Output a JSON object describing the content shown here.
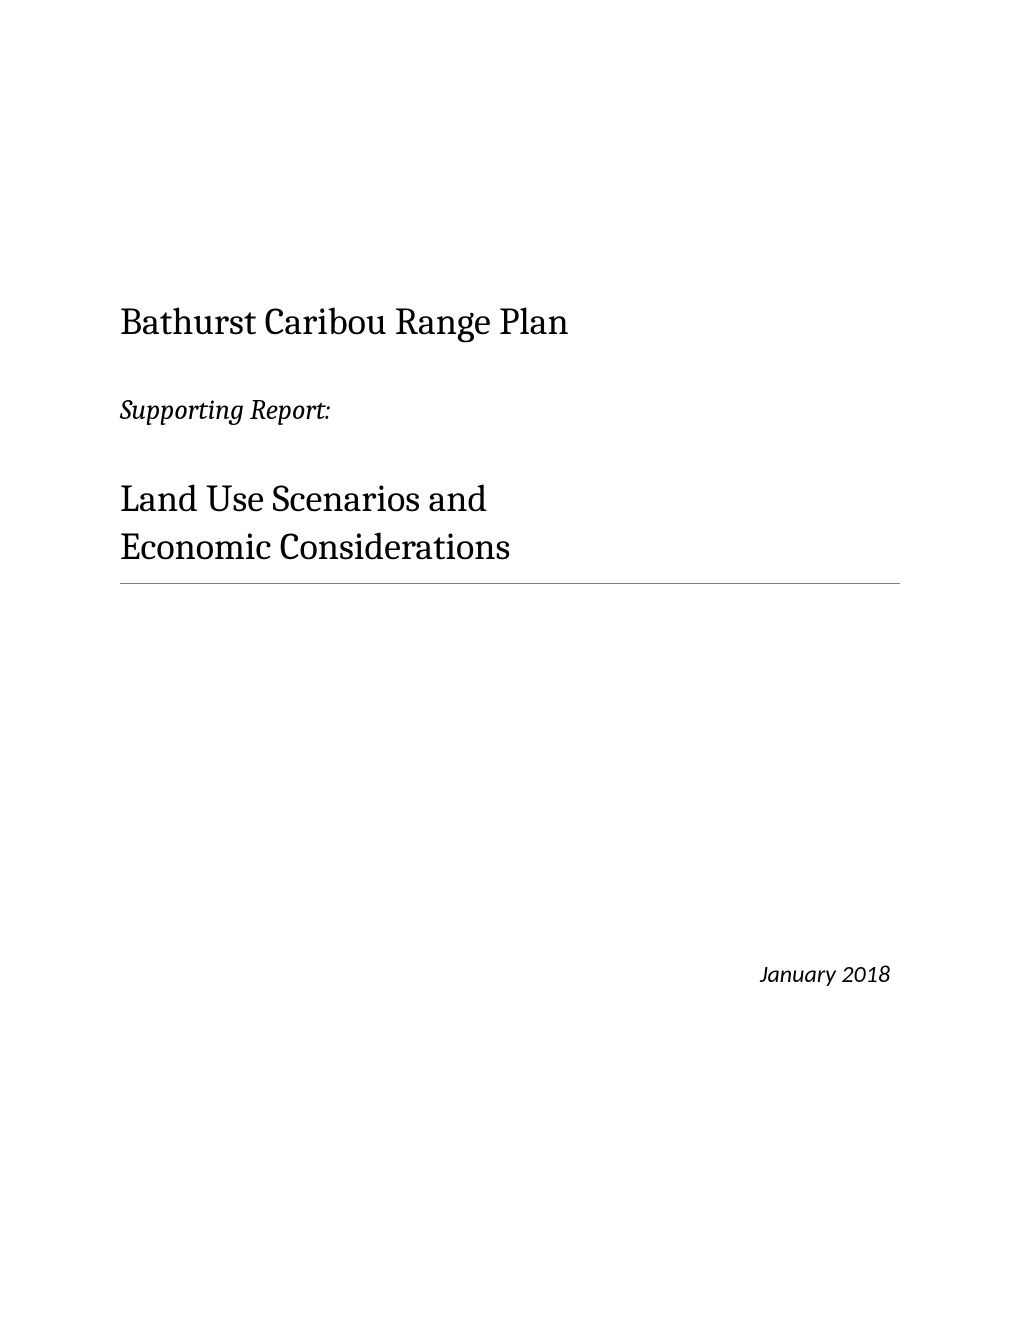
{
  "document": {
    "title_main": "Bathurst Caribou Range Plan",
    "subtitle_label": "Supporting Report:",
    "title_secondary_line1": "Land Use Scenarios and",
    "title_secondary_line2": "Economic Considerations",
    "date": "January 2018"
  },
  "styling": {
    "page_background": "#ffffff",
    "text_color": "#000000",
    "rule_color": "#808080",
    "title_font_size": 38,
    "subtitle_font_size": 28,
    "date_font_size": 24,
    "font_family_main": "Cambria, Georgia, serif",
    "font_family_date": "Calibri, Arial, sans-serif"
  }
}
